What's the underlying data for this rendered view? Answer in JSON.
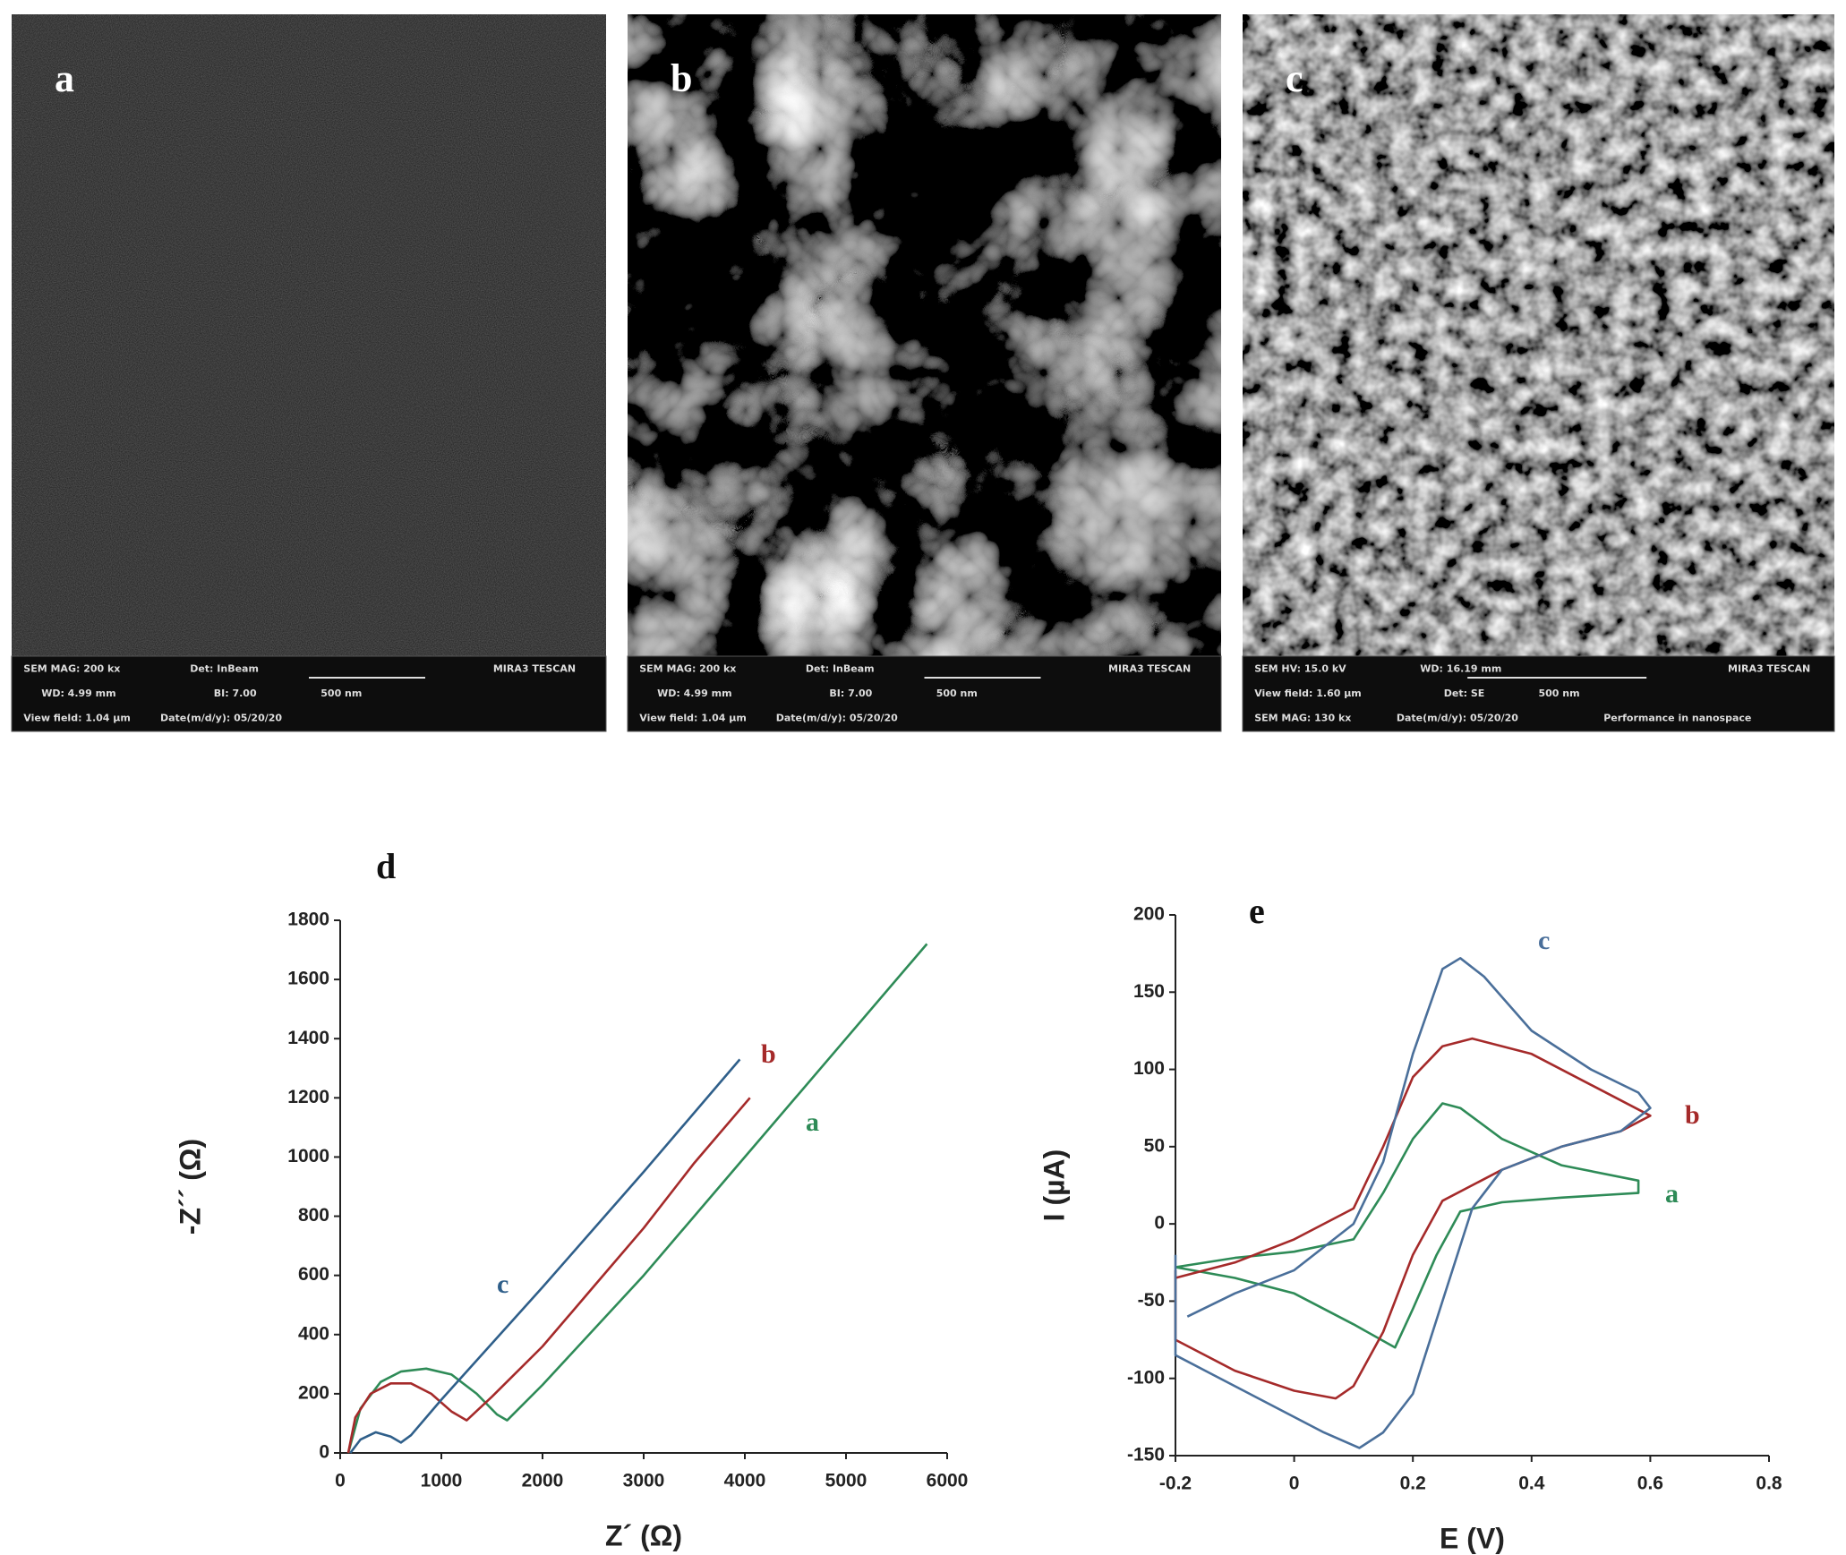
{
  "panels": [
    {
      "label": "a",
      "info": [
        "SEM MAG: 200 kx",
        "Det: InBeam",
        "MIRA3 TESCAN",
        "WD: 4.99 mm",
        "BI: 7.00",
        "500 nm",
        "View field: 1.04 µm",
        "Date(m/d/y): 05/20/20"
      ]
    },
    {
      "label": "b",
      "info": [
        "SEM MAG: 200 kx",
        "Det: InBeam",
        "MIRA3 TESCAN",
        "WD: 4.99 mm",
        "BI: 7.00",
        "500 nm",
        "View field: 1.04 µm",
        "Date(m/d/y): 05/20/20"
      ]
    },
    {
      "label": "c",
      "info": [
        "SEM HV: 15.0 kV",
        "WD: 16.19 mm",
        "MIRA3 TESCAN",
        "View field: 1.60 µm",
        "Det: SE",
        "500 nm",
        "SEM MAG: 130 kx",
        "Date(m/d/y): 05/20/20",
        "Performance in nanospace"
      ]
    }
  ],
  "chart_data": [
    {
      "type": "line",
      "title": "d",
      "x_label": "Z´ (Ω)",
      "y_label": "-Z´´ (Ω)",
      "xlim": [
        0,
        6000
      ],
      "xticks": [
        0,
        1000,
        2000,
        3000,
        4000,
        5000,
        6000
      ],
      "ylim": [
        0,
        1800
      ],
      "yticks": [
        0,
        200,
        400,
        600,
        800,
        1000,
        1200,
        1400,
        1600,
        1800
      ],
      "series": [
        {
          "name": "a",
          "color": "#2e8b57",
          "x": [
            80,
            200,
            400,
            600,
            850,
            1100,
            1350,
            1550,
            1650,
            2000,
            3000,
            4000,
            5000,
            5800
          ],
          "values": [
            0,
            150,
            240,
            275,
            285,
            265,
            200,
            130,
            110,
            230,
            600,
            1000,
            1400,
            1720
          ]
        },
        {
          "name": "b",
          "color": "#a52a2a",
          "x": [
            80,
            150,
            300,
            500,
            700,
            900,
            1100,
            1250,
            1500,
            2000,
            2500,
            3000,
            3500,
            4050
          ],
          "values": [
            0,
            120,
            200,
            235,
            235,
            200,
            140,
            110,
            190,
            360,
            560,
            760,
            980,
            1200
          ]
        },
        {
          "name": "c",
          "color": "#2f5f8a",
          "x": [
            100,
            200,
            350,
            500,
            600,
            700,
            1000,
            2000,
            3000,
            3950
          ],
          "values": [
            0,
            45,
            70,
            55,
            35,
            60,
            180,
            560,
            950,
            1330
          ]
        }
      ]
    },
    {
      "type": "line",
      "title": "e",
      "x_label": "E (V)",
      "y_label": "I (µA)",
      "xlim": [
        -0.2,
        0.8
      ],
      "xticks": [
        -0.2,
        0,
        0.2,
        0.4,
        0.6,
        0.8
      ],
      "ylim": [
        -150,
        200
      ],
      "yticks": [
        -150,
        -100,
        -50,
        0,
        50,
        100,
        150,
        200
      ],
      "series": [
        {
          "name": "a",
          "color": "#2e8b57",
          "x": [
            -0.2,
            -0.1,
            0,
            0.1,
            0.15,
            0.2,
            0.25,
            0.28,
            0.35,
            0.45,
            0.58,
            0.58,
            0.45,
            0.35,
            0.28,
            0.24,
            0.2,
            0.17,
            0.1,
            0,
            -0.1,
            -0.2
          ],
          "values": [
            -28,
            -22,
            -18,
            -10,
            20,
            55,
            78,
            75,
            55,
            38,
            28,
            20,
            17,
            14,
            8,
            -20,
            -55,
            -80,
            -65,
            -45,
            -35,
            -28
          ]
        },
        {
          "name": "b",
          "color": "#a52a2a",
          "x": [
            -0.2,
            -0.1,
            0,
            0.1,
            0.15,
            0.2,
            0.25,
            0.3,
            0.4,
            0.5,
            0.6,
            0.55,
            0.45,
            0.35,
            0.25,
            0.2,
            0.15,
            0.1,
            0.07,
            0,
            -0.1,
            -0.2,
            -0.2
          ],
          "values": [
            -35,
            -25,
            -10,
            10,
            50,
            95,
            115,
            120,
            110,
            90,
            70,
            60,
            50,
            35,
            15,
            -20,
            -70,
            -105,
            -113,
            -108,
            -95,
            -75,
            -30
          ]
        },
        {
          "name": "c",
          "color": "#4a6f9a",
          "x": [
            -0.18,
            -0.1,
            0,
            0.1,
            0.15,
            0.2,
            0.25,
            0.28,
            0.32,
            0.4,
            0.5,
            0.58,
            0.6,
            0.55,
            0.45,
            0.35,
            0.3,
            0.25,
            0.2,
            0.15,
            0.11,
            0.05,
            -0.05,
            -0.15,
            -0.2,
            -0.2
          ],
          "values": [
            -60,
            -45,
            -30,
            0,
            40,
            110,
            165,
            172,
            160,
            125,
            100,
            85,
            75,
            60,
            50,
            35,
            10,
            -50,
            -110,
            -135,
            -145,
            -135,
            -115,
            -95,
            -85,
            -20
          ]
        }
      ]
    }
  ]
}
